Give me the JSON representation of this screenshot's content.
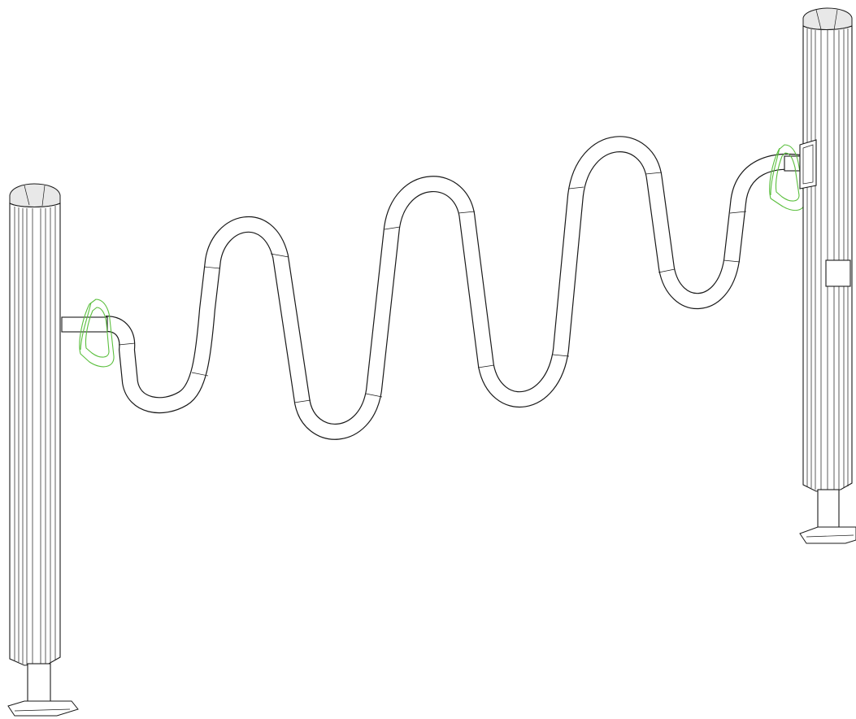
{
  "colors": {
    "ink": "#1a1a1a",
    "tube_outline": "#1a1a1a",
    "tube_fill": "#ffffff",
    "highlight": "#5bbf3e",
    "cap_fill": "#e8e8e8",
    "background": "#ffffff"
  },
  "parts": {
    "left_post": "post",
    "right_post": "post",
    "wavy_tube": "tube",
    "left_ring": "ring",
    "right_ring": "ring"
  }
}
